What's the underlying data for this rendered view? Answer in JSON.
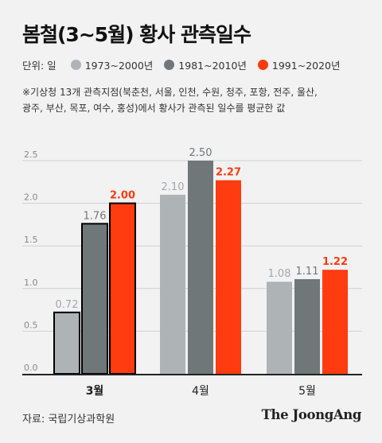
{
  "title": "봄철(3~5월) 황사 관측일수",
  "unit_label": "단위: 일",
  "note_lines": [
    "※기상청 13개 관측지점(북춘천, 서울, 인천, 수원, 청주, 포항, 전주, 울산,",
    "광주, 부산, 목포, 여수, 홍성)에서 황사가 관측된 일수를 평균한 값"
  ],
  "source": "자료: 국립기상과학원",
  "brand": "The JoongAng",
  "colors": {
    "series1": "#aeb3b6",
    "series2": "#6f7778",
    "series3": "#ff3b10",
    "highlight_border": "#000000"
  },
  "chart_data": {
    "type": "bar",
    "categories": [
      "3월",
      "4월",
      "5월"
    ],
    "highlight_category": "3월",
    "series": [
      {
        "name": "1973~2000년",
        "values": [
          0.72,
          2.1,
          1.08
        ],
        "labels": [
          "0.72",
          "2.10",
          "1.08"
        ]
      },
      {
        "name": "1981~2010년",
        "values": [
          1.76,
          2.5,
          1.11
        ],
        "labels": [
          "1.76",
          "2.50",
          "1.11"
        ]
      },
      {
        "name": "1991~2020년",
        "values": [
          2.0,
          2.27,
          1.22
        ],
        "labels": [
          "2.00",
          "2.27",
          "1.22"
        ]
      }
    ],
    "ylim": [
      0,
      2.5
    ],
    "yticks": [
      "0.0",
      "0.5",
      "1.0",
      "1.5",
      "2.0",
      "2.5"
    ],
    "grid": true
  }
}
